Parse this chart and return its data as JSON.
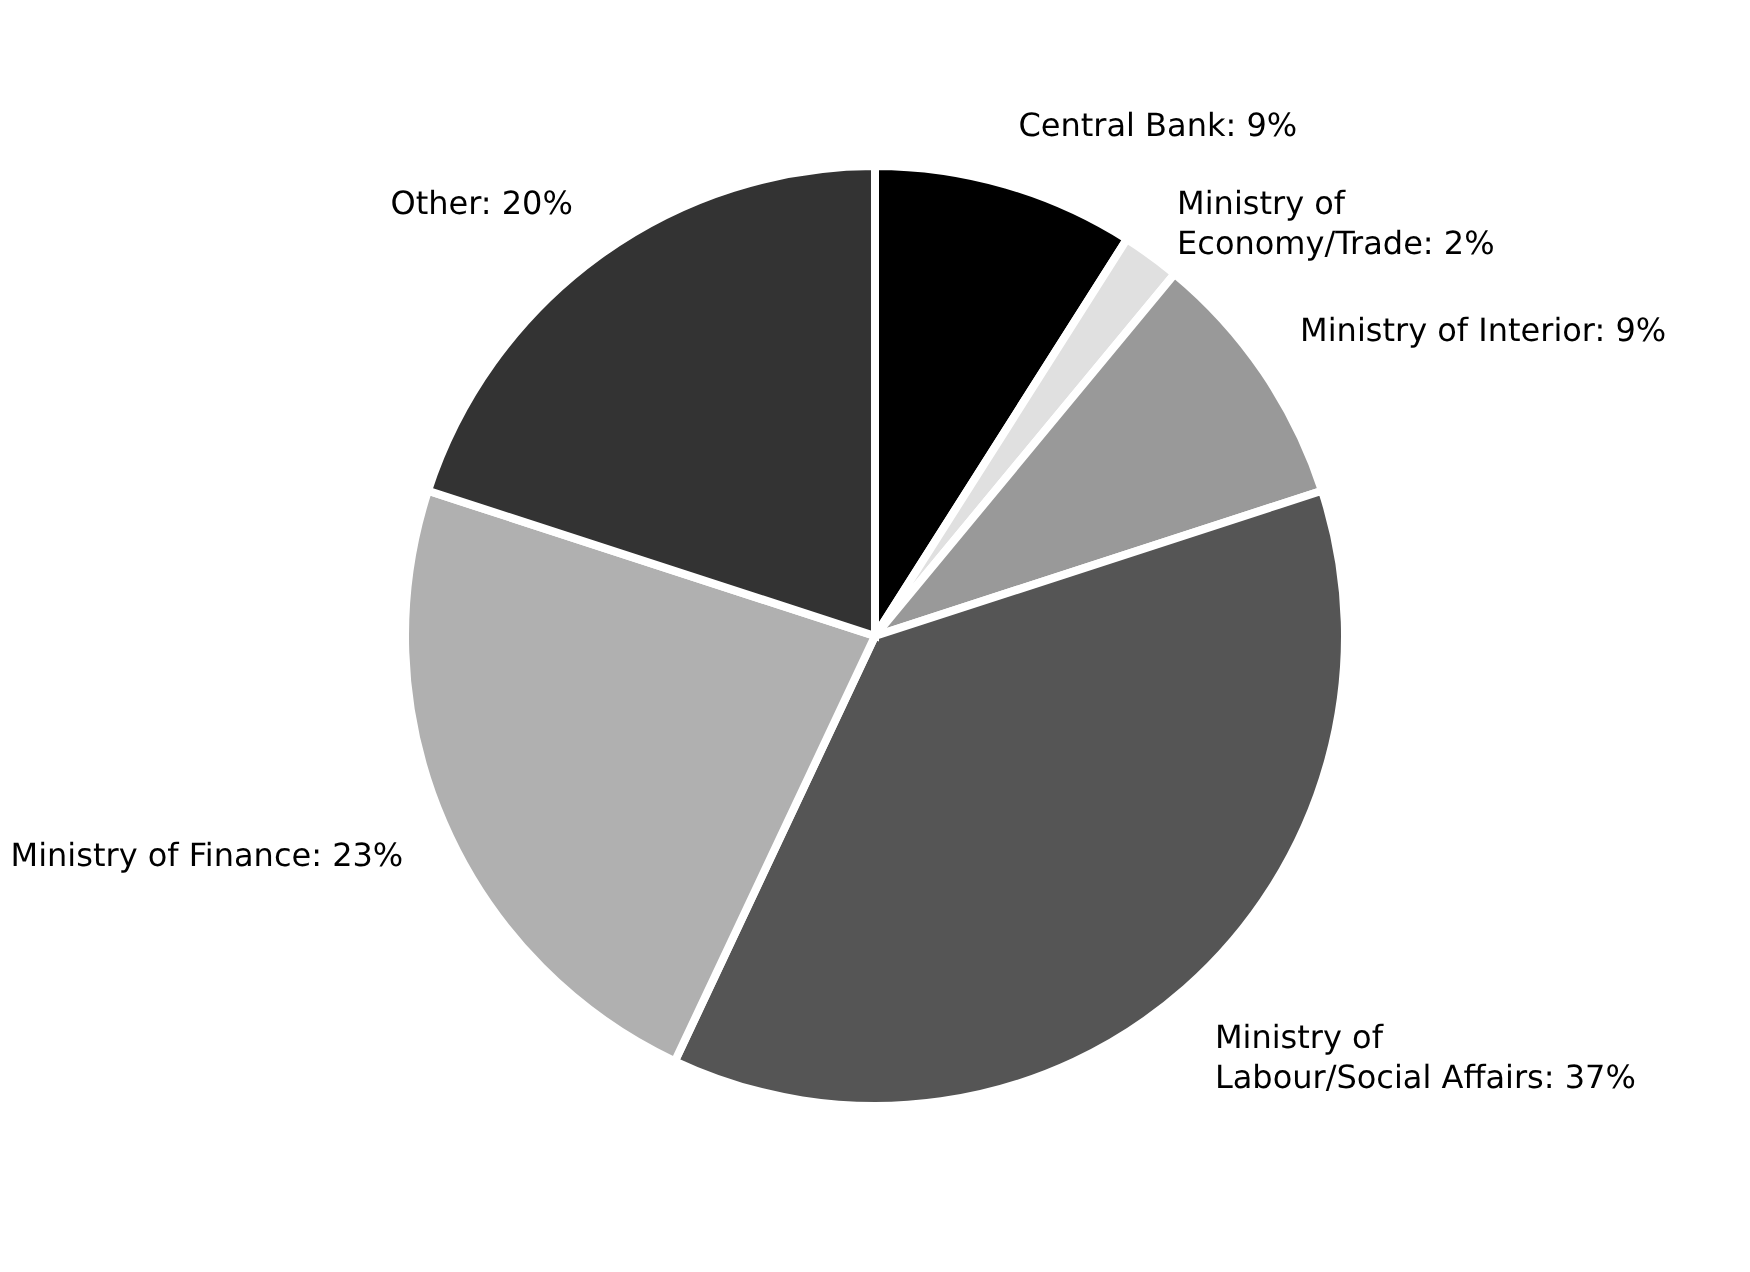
{
  "chart_data": {
    "type": "pie",
    "categories": [
      "Central Bank",
      "Ministry of Economy/Trade",
      "Ministry of Interior",
      "Ministry of Labour/Social Affairs",
      "Ministry of Finance",
      "Other"
    ],
    "values": [
      9,
      2,
      9,
      37,
      23,
      20
    ],
    "value_labels": [
      "9%",
      "2%",
      "9%",
      "37%",
      "23%",
      "20%"
    ],
    "colors": [
      "#000000",
      "#e0e0e0",
      "#999999",
      "#555555",
      "#b0b0b0",
      "#333333"
    ]
  }
}
